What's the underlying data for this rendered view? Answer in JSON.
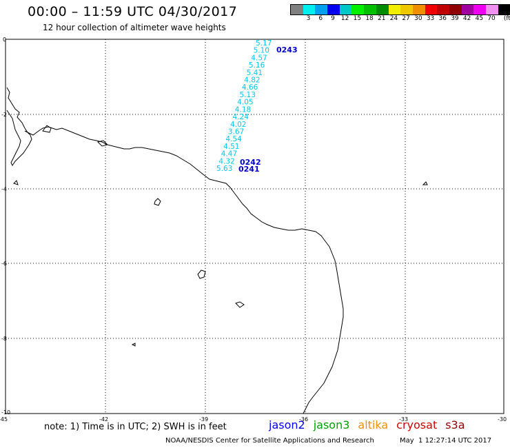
{
  "header": {
    "title": "00:00 – 11:59 UTC 04/30/2017",
    "subtitle": "12 hour collection of altimeter wave heights"
  },
  "legend": {
    "unit": "(ft)",
    "swatches": [
      {
        "color": "#808080",
        "label": ""
      },
      {
        "color": "#00f0f0",
        "label": "3"
      },
      {
        "color": "#00a0f0",
        "label": "6"
      },
      {
        "color": "#0000f0",
        "label": "9"
      },
      {
        "color": "#00c8c8",
        "label": "12"
      },
      {
        "color": "#00f000",
        "label": "15"
      },
      {
        "color": "#00c000",
        "label": "18"
      },
      {
        "color": "#008c00",
        "label": "21"
      },
      {
        "color": "#f0f000",
        "label": "24"
      },
      {
        "color": "#f0c800",
        "label": "27"
      },
      {
        "color": "#f09000",
        "label": "30"
      },
      {
        "color": "#f00000",
        "label": "33"
      },
      {
        "color": "#c00000",
        "label": "36"
      },
      {
        "color": "#900000",
        "label": "39"
      },
      {
        "color": "#a000a0",
        "label": "42"
      },
      {
        "color": "#f000f0",
        "label": "45"
      },
      {
        "color": "#f090f0",
        "label": "70"
      },
      {
        "color": "#000000",
        "label": ""
      }
    ]
  },
  "axes": {
    "lon_ticks": [
      "-45",
      "-42",
      "-39",
      "-36",
      "-33",
      "-30"
    ],
    "lat_ticks": [
      "0",
      "-2",
      "-4",
      "-6",
      "-8",
      "-10"
    ]
  },
  "track": {
    "swh_values": [
      "5.17",
      "5.10",
      "4.57",
      "5.16",
      "5.41",
      "4.82",
      "4.66",
      "5.13",
      "4.05",
      "4.18",
      "4.24",
      "4.02",
      "3.67",
      "4.54",
      "4.51",
      "4.47",
      "4.32",
      "5.63"
    ],
    "pass_labels": {
      "top": "0243",
      "middle": "0242",
      "bottom": "0241"
    },
    "track_color": "#00c8f0",
    "pass_color": "#0000c8"
  },
  "footer": {
    "note": "note: 1) Time is in UTC; 2) SWH is in feet",
    "satellites": [
      {
        "name": "jason2",
        "color": "#0000f0"
      },
      {
        "name": "jason3",
        "color": "#00a000"
      },
      {
        "name": "altika",
        "color": "#f09000"
      },
      {
        "name": "cryosat",
        "color": "#d00000"
      },
      {
        "name": "s3a",
        "color": "#900000"
      }
    ],
    "credit": "NOAA/NESDIS Center for Satellite Applications and Research",
    "timestamp": "May  1 12:27:14 UTC 2017"
  }
}
